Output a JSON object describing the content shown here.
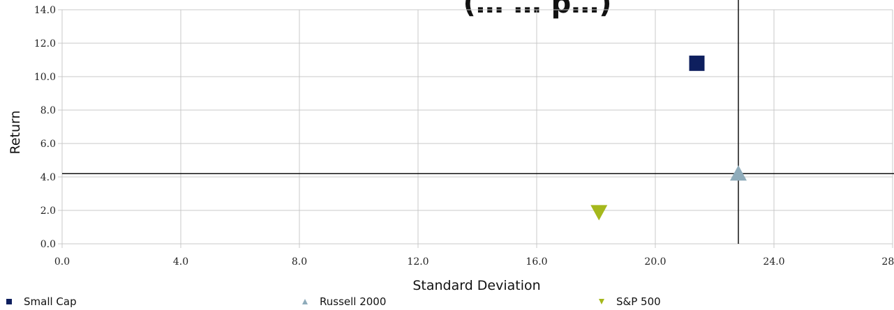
{
  "chart_data": {
    "type": "scatter",
    "title": "(… … p…)",
    "xlabel": "Standard Deviation",
    "ylabel": "Return",
    "xlim": [
      0,
      28
    ],
    "ylim": [
      0,
      14
    ],
    "xticks": [
      "0.0",
      "4.0",
      "8.0",
      "12.0",
      "16.0",
      "20.0",
      "24.0",
      "28.0"
    ],
    "yticks": [
      "0.0",
      "2.0",
      "4.0",
      "6.0",
      "8.0",
      "10.0",
      "12.0",
      "14.0"
    ],
    "grid": true,
    "legend_position": "bottom",
    "series": [
      {
        "name": "Small Cap",
        "marker": "square",
        "color": "#0e1f5e",
        "x": 21.4,
        "y": 10.8
      },
      {
        "name": "Russell 2000",
        "marker": "triangle-up",
        "color": "#8facbb",
        "x": 22.8,
        "y": 4.2
      },
      {
        "name": "S&P 500",
        "marker": "triangle-down",
        "color": "#a5b81c",
        "x": 18.1,
        "y": 1.9
      }
    ],
    "reference_lines": {
      "vertical_x": 22.8,
      "horizontal_y": 4.2
    }
  }
}
